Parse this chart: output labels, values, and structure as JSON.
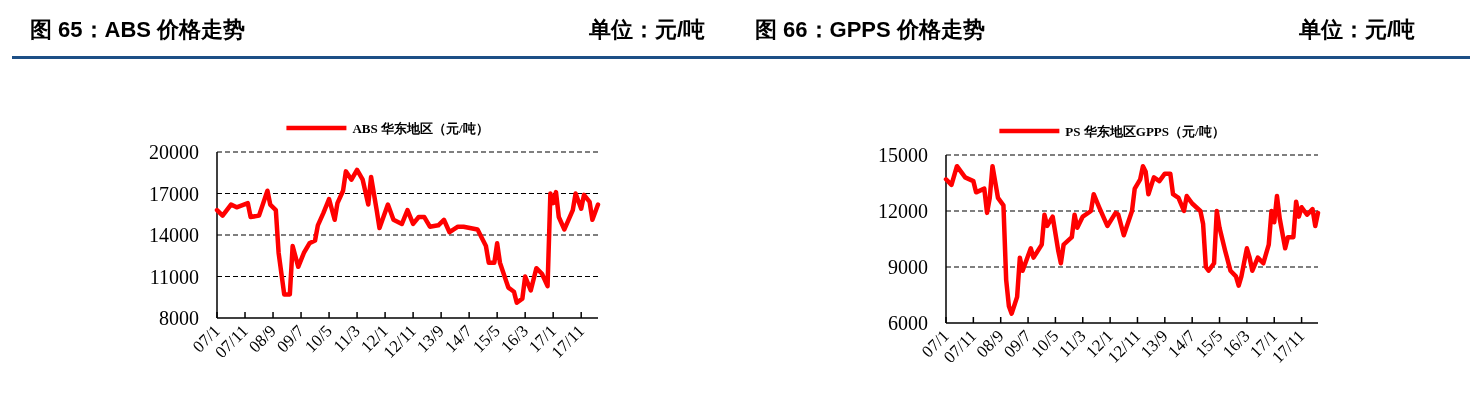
{
  "chart_data": [
    {
      "type": "line",
      "title": "图 65：ABS 价格走势",
      "subtitle": "单位：元/吨",
      "x": [
        "2007-01",
        "2007-03",
        "2007-06",
        "2007-08",
        "2007-12",
        "2008-01",
        "2008-04",
        "2008-07",
        "2008-08",
        "2008-10",
        "2008-11",
        "2009-01",
        "2009-03",
        "2009-04",
        "2009-06",
        "2009-08",
        "2009-10",
        "2009-12",
        "2010-01",
        "2010-03",
        "2010-05",
        "2010-07",
        "2010-08",
        "2010-10",
        "2010-11",
        "2011-01",
        "2011-03",
        "2011-05",
        "2011-07",
        "2011-08",
        "2011-10",
        "2011-11",
        "2012-02",
        "2012-04",
        "2012-07",
        "2012-09",
        "2012-11",
        "2013-01",
        "2013-03",
        "2013-05",
        "2013-08",
        "2013-10",
        "2013-12",
        "2014-03",
        "2014-05",
        "2014-10",
        "2015-01",
        "2015-02",
        "2015-04",
        "2015-05",
        "2015-06",
        "2015-09",
        "2015-11",
        "2015-12",
        "2016-02",
        "2016-03",
        "2016-05",
        "2016-07",
        "2016-09",
        "2016-11",
        "2016-12",
        "2017-01",
        "2017-02",
        "2017-03",
        "2017-05",
        "2017-08",
        "2017-09",
        "2017-11",
        "2017-12",
        "2018-02",
        "2018-03",
        "2018-05"
      ],
      "series": [
        {
          "name": "ABS 华东地区（元/吨）",
          "color": "#ff0000",
          "values": [
            15800,
            15400,
            16200,
            16000,
            16300,
            15300,
            15400,
            17200,
            16200,
            15800,
            12700,
            9700,
            9700,
            13200,
            11700,
            12700,
            13400,
            13600,
            14700,
            15600,
            16600,
            15100,
            16300,
            17200,
            18600,
            18000,
            18700,
            18000,
            16200,
            18200,
            15800,
            14500,
            16200,
            15100,
            14800,
            15800,
            14800,
            15300,
            15300,
            14600,
            14700,
            15100,
            14200,
            14600,
            14600,
            14400,
            13200,
            12000,
            12000,
            13400,
            12000,
            10200,
            9900,
            9100,
            9400,
            11000,
            10000,
            11600,
            11200,
            10300,
            17000,
            16300,
            17100,
            15300,
            14400,
            15800,
            17000,
            15900,
            16900,
            16400,
            15100,
            16200
          ]
        }
      ],
      "xlim": [
        "2007-01",
        "2018-05"
      ],
      "xticks": [
        {
          "value": "2007-01",
          "label": "07/1"
        },
        {
          "value": "2007-11",
          "label": "07/11"
        },
        {
          "value": "2008-09",
          "label": "08/9"
        },
        {
          "value": "2009-07",
          "label": "09/7"
        },
        {
          "value": "2010-05",
          "label": "10/5"
        },
        {
          "value": "2011-03",
          "label": "11/3"
        },
        {
          "value": "2012-01",
          "label": "12/1"
        },
        {
          "value": "2012-11",
          "label": "12/11"
        },
        {
          "value": "2013-09",
          "label": "13/9"
        },
        {
          "value": "2014-07",
          "label": "14/7"
        },
        {
          "value": "2015-05",
          "label": "15/5"
        },
        {
          "value": "2016-03",
          "label": "16/3"
        },
        {
          "value": "2017-01",
          "label": "17/1"
        },
        {
          "value": "2017-11",
          "label": "17/11"
        }
      ],
      "ylim": [
        8000,
        20000
      ],
      "yticks": [
        8000,
        11000,
        14000,
        17000,
        20000
      ],
      "grid": "y",
      "legend": "top",
      "marker": "none",
      "line_style": "solid"
    },
    {
      "type": "line",
      "title": "图 66：GPPS 价格走势",
      "subtitle": "单位：元/吨",
      "x": [
        "2007-01",
        "2007-03",
        "2007-05",
        "2007-08",
        "2007-11",
        "2007-12",
        "2008-03",
        "2008-04",
        "2008-05",
        "2008-06",
        "2008-08",
        "2008-10",
        "2008-11",
        "2008-12",
        "2009-01",
        "2009-03",
        "2009-04",
        "2009-05",
        "2009-08",
        "2009-09",
        "2009-12",
        "2010-01",
        "2010-02",
        "2010-04",
        "2010-06",
        "2010-07",
        "2010-08",
        "2010-11",
        "2010-12",
        "2011-01",
        "2011-03",
        "2011-06",
        "2011-07",
        "2011-09",
        "2011-12",
        "2012-03",
        "2012-04",
        "2012-06",
        "2012-09",
        "2012-10",
        "2012-12",
        "2013-01",
        "2013-02",
        "2013-03",
        "2013-05",
        "2013-07",
        "2013-09",
        "2013-11",
        "2013-12",
        "2014-02",
        "2014-04",
        "2014-05",
        "2014-07",
        "2014-10",
        "2014-11",
        "2014-12",
        "2015-01",
        "2015-03",
        "2015-04",
        "2015-05",
        "2015-07",
        "2015-09",
        "2015-11",
        "2015-12",
        "2016-01",
        "2016-03",
        "2016-04",
        "2016-05",
        "2016-07",
        "2016-09",
        "2016-11",
        "2016-12",
        "2017-01",
        "2017-02",
        "2017-03",
        "2017-05",
        "2017-06",
        "2017-08",
        "2017-09",
        "2017-10",
        "2017-11",
        "2018-01",
        "2018-03",
        "2018-04",
        "2018-05"
      ],
      "series": [
        {
          "name": "PS 华东地区GPPS（元/吨）",
          "color": "#ff0000",
          "values": [
            13700,
            13400,
            14400,
            13800,
            13600,
            13000,
            13200,
            11900,
            12700,
            14400,
            12700,
            12300,
            8300,
            6900,
            6500,
            7400,
            9500,
            8800,
            10000,
            9500,
            10200,
            11800,
            11200,
            11700,
            9900,
            9200,
            10200,
            10600,
            11800,
            11100,
            11700,
            12000,
            12900,
            12200,
            11200,
            11900,
            11800,
            10700,
            12000,
            13200,
            13700,
            14400,
            14100,
            12900,
            13800,
            13600,
            14000,
            14000,
            12900,
            12700,
            12000,
            12800,
            12400,
            12000,
            11300,
            9000,
            8800,
            9200,
            12000,
            11100,
            9900,
            8800,
            8500,
            8000,
            8500,
            10000,
            9500,
            8800,
            9500,
            9200,
            10200,
            12000,
            11400,
            12800,
            11600,
            10000,
            10600,
            10600,
            12500,
            11700,
            12200,
            11800,
            12100,
            11200,
            11900
          ]
        }
      ],
      "xlim": [
        "2007-01",
        "2018-05"
      ],
      "xticks": [
        {
          "value": "2007-01",
          "label": "07/1"
        },
        {
          "value": "2007-11",
          "label": "07/11"
        },
        {
          "value": "2008-09",
          "label": "08/9"
        },
        {
          "value": "2009-07",
          "label": "09/7"
        },
        {
          "value": "2010-05",
          "label": "10/5"
        },
        {
          "value": "2011-03",
          "label": "11/3"
        },
        {
          "value": "2012-01",
          "label": "12/1"
        },
        {
          "value": "2012-11",
          "label": "12/11"
        },
        {
          "value": "2013-09",
          "label": "13/9"
        },
        {
          "value": "2014-07",
          "label": "14/7"
        },
        {
          "value": "2015-05",
          "label": "15/5"
        },
        {
          "value": "2016-03",
          "label": "16/3"
        },
        {
          "value": "2017-01",
          "label": "17/1"
        },
        {
          "value": "2017-11",
          "label": "17/11"
        }
      ],
      "ylim": [
        6000,
        15000
      ],
      "yticks": [
        6000,
        9000,
        12000,
        15000
      ],
      "grid": "y",
      "legend": "top",
      "marker": "none",
      "line_style": "solid"
    }
  ]
}
